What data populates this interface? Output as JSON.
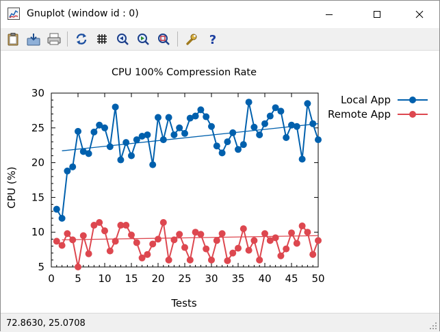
{
  "window": {
    "title": "Gnuplot (window id : 0)",
    "icons": {
      "app": "gnuplot-app-icon",
      "minimize": "minimize-icon",
      "maximize": "maximize-icon",
      "close": "close-icon"
    }
  },
  "toolbar": {
    "buttons": [
      {
        "name": "copy-to-clipboard-button",
        "icon": "clipboard-icon"
      },
      {
        "name": "save-button",
        "icon": "save-icon"
      },
      {
        "name": "print-button",
        "icon": "printer-icon"
      },
      {
        "name": "replot-button",
        "icon": "refresh-icon"
      },
      {
        "name": "toggle-grid-button",
        "icon": "grid-icon"
      },
      {
        "name": "zoom-previous-button",
        "icon": "zoom-back-icon"
      },
      {
        "name": "zoom-next-button",
        "icon": "zoom-forward-icon"
      },
      {
        "name": "unzoom-button",
        "icon": "zoom-reset-icon"
      },
      {
        "name": "options-button",
        "icon": "wrench-icon"
      },
      {
        "name": "help-button",
        "icon": "help-icon"
      }
    ]
  },
  "status": {
    "coords": "72.8630,  25.0708"
  },
  "chart_data": {
    "type": "line",
    "title": "CPU 100% Compression Rate",
    "xlabel": "Tests",
    "ylabel": "CPU (%)",
    "xlim": [
      0,
      50
    ],
    "ylim": [
      5,
      30
    ],
    "xticks": [
      "0",
      "5",
      "10",
      "15",
      "20",
      "25",
      "30",
      "35",
      "40",
      "45",
      "50"
    ],
    "yticks": [
      "5",
      "10",
      "15",
      "20",
      "25",
      "30"
    ],
    "grid": false,
    "legend_position": "top-right-outside",
    "colors": {
      "local": "#0060ad",
      "remote": "#dd474f"
    },
    "x": [
      1,
      2,
      3,
      4,
      5,
      6,
      7,
      8,
      9,
      10,
      11,
      12,
      13,
      14,
      15,
      16,
      17,
      18,
      19,
      20,
      21,
      22,
      23,
      24,
      25,
      26,
      27,
      28,
      29,
      30,
      31,
      32,
      33,
      34,
      35,
      36,
      37,
      38,
      39,
      40,
      41,
      42,
      43,
      44,
      45,
      46,
      47,
      48,
      49,
      50
    ],
    "series": [
      {
        "name": "Local App",
        "values": [
          13.3,
          12.0,
          18.8,
          19.4,
          24.5,
          21.6,
          21.3,
          24.4,
          25.4,
          25.0,
          22.3,
          28.0,
          20.4,
          22.9,
          21.0,
          23.3,
          23.8,
          24.0,
          19.7,
          26.5,
          23.3,
          26.5,
          24.0,
          25.0,
          24.2,
          26.4,
          26.7,
          27.6,
          26.6,
          25.2,
          22.4,
          21.4,
          23.0,
          24.3,
          21.9,
          22.6,
          28.7,
          25.1,
          24.0,
          25.6,
          26.7,
          27.9,
          27.4,
          23.6,
          25.4,
          25.2,
          20.5,
          28.5,
          25.6,
          23.3
        ]
      },
      {
        "name": "Remote App",
        "values": [
          8.7,
          8.1,
          9.8,
          8.9,
          5.0,
          9.5,
          6.9,
          11.0,
          11.4,
          10.2,
          7.3,
          8.7,
          11.0,
          11.0,
          9.6,
          8.5,
          6.3,
          6.8,
          8.3,
          9.0,
          11.4,
          6.0,
          8.9,
          9.7,
          7.8,
          6.0,
          10.0,
          9.7,
          7.6,
          6.0,
          8.8,
          9.8,
          5.9,
          7.0,
          7.7,
          10.5,
          7.4,
          8.8,
          6.0,
          9.8,
          8.8,
          9.2,
          6.6,
          7.6,
          9.9,
          8.4,
          10.9,
          10.0,
          6.8,
          8.8
        ]
      }
    ],
    "trendlines": [
      {
        "series": "Local App",
        "x": [
          2,
          50
        ],
        "y": [
          21.7,
          25.6
        ]
      },
      {
        "series": "Remote App",
        "x": [
          2,
          50
        ],
        "y": [
          8.9,
          9.5
        ]
      }
    ]
  }
}
